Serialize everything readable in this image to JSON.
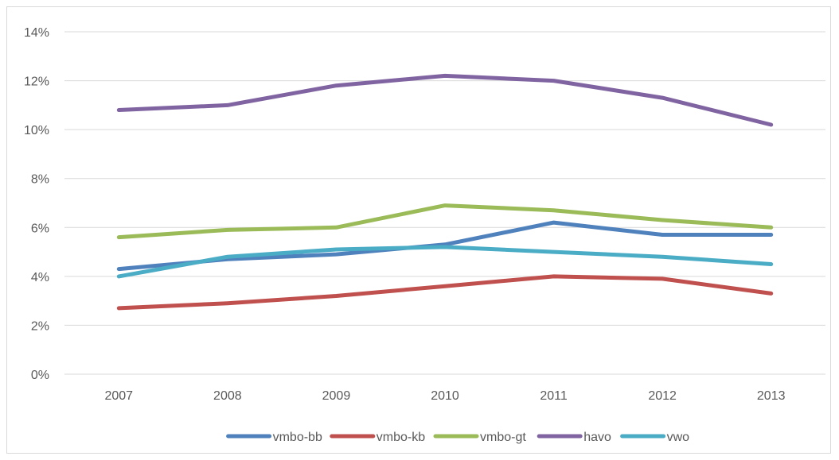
{
  "chart_data": {
    "type": "line",
    "title": "",
    "xlabel": "",
    "ylabel": "",
    "x": [
      "2007",
      "2008",
      "2009",
      "2010",
      "2011",
      "2012",
      "2013"
    ],
    "ylim": [
      0,
      14
    ],
    "yticks": [
      0,
      2,
      4,
      6,
      8,
      10,
      12,
      14
    ],
    "ytick_labels": [
      "0%",
      "2%",
      "4%",
      "6%",
      "8%",
      "10%",
      "12%",
      "14%"
    ],
    "grid": true,
    "legend_position": "bottom",
    "series": [
      {
        "name": "vmbo-bb",
        "color": "#4f81bd",
        "values": [
          4.3,
          4.7,
          4.9,
          5.3,
          6.2,
          5.7,
          5.7
        ]
      },
      {
        "name": "vmbo-kb",
        "color": "#c0504d",
        "values": [
          2.7,
          2.9,
          3.2,
          3.6,
          4.0,
          3.9,
          3.3
        ]
      },
      {
        "name": "vmbo-gt",
        "color": "#9bbb59",
        "values": [
          5.6,
          5.9,
          6.0,
          6.9,
          6.7,
          6.3,
          6.0
        ]
      },
      {
        "name": "havo",
        "color": "#8064a2",
        "values": [
          10.8,
          11.0,
          11.8,
          12.2,
          12.0,
          11.3,
          10.2
        ]
      },
      {
        "name": "vwo",
        "color": "#4bacc6",
        "values": [
          4.0,
          4.8,
          5.1,
          5.2,
          5.0,
          4.8,
          4.5
        ]
      }
    ]
  }
}
